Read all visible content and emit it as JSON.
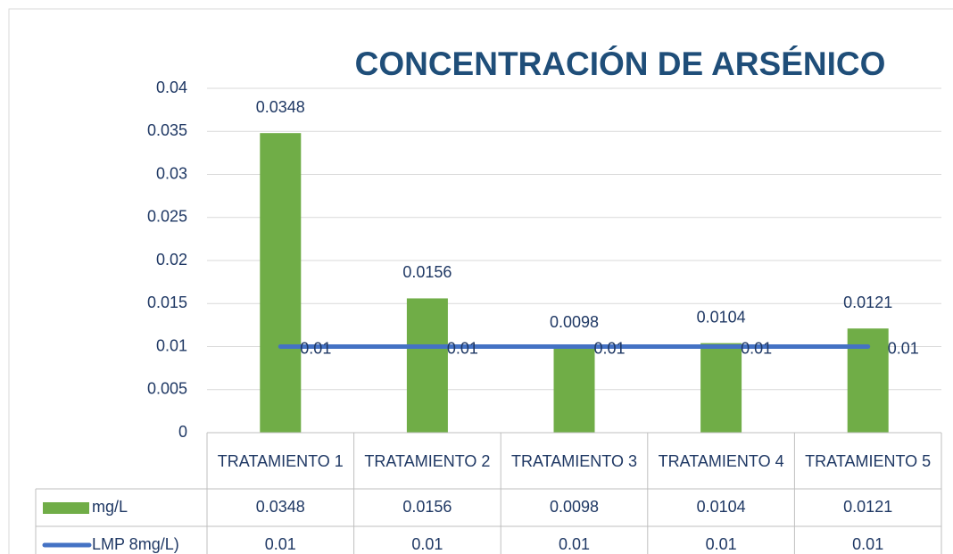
{
  "chart_data": {
    "type": "bar",
    "title": "CONCENTRACIÓN DE ARSÉNICO",
    "categories": [
      "TRATAMIENTO 1",
      "TRATAMIENTO 2",
      "TRATAMIENTO 3",
      "TRATAMIENTO 4",
      "TRATAMIENTO 5"
    ],
    "series": [
      {
        "name": "mg/L",
        "type": "bar",
        "color": "#70ad47",
        "values": [
          0.0348,
          0.0156,
          0.0098,
          0.0104,
          0.0121
        ]
      },
      {
        "name": "LMP 8mg/L)",
        "type": "line",
        "color": "#4472c4",
        "values": [
          0.01,
          0.01,
          0.01,
          0.01,
          0.01
        ]
      }
    ],
    "ylim": [
      0,
      0.04
    ],
    "yticks": [
      0,
      0.005,
      0.01,
      0.015,
      0.02,
      0.025,
      0.03,
      0.035,
      0.04
    ],
    "grid": true,
    "data_table": true
  }
}
